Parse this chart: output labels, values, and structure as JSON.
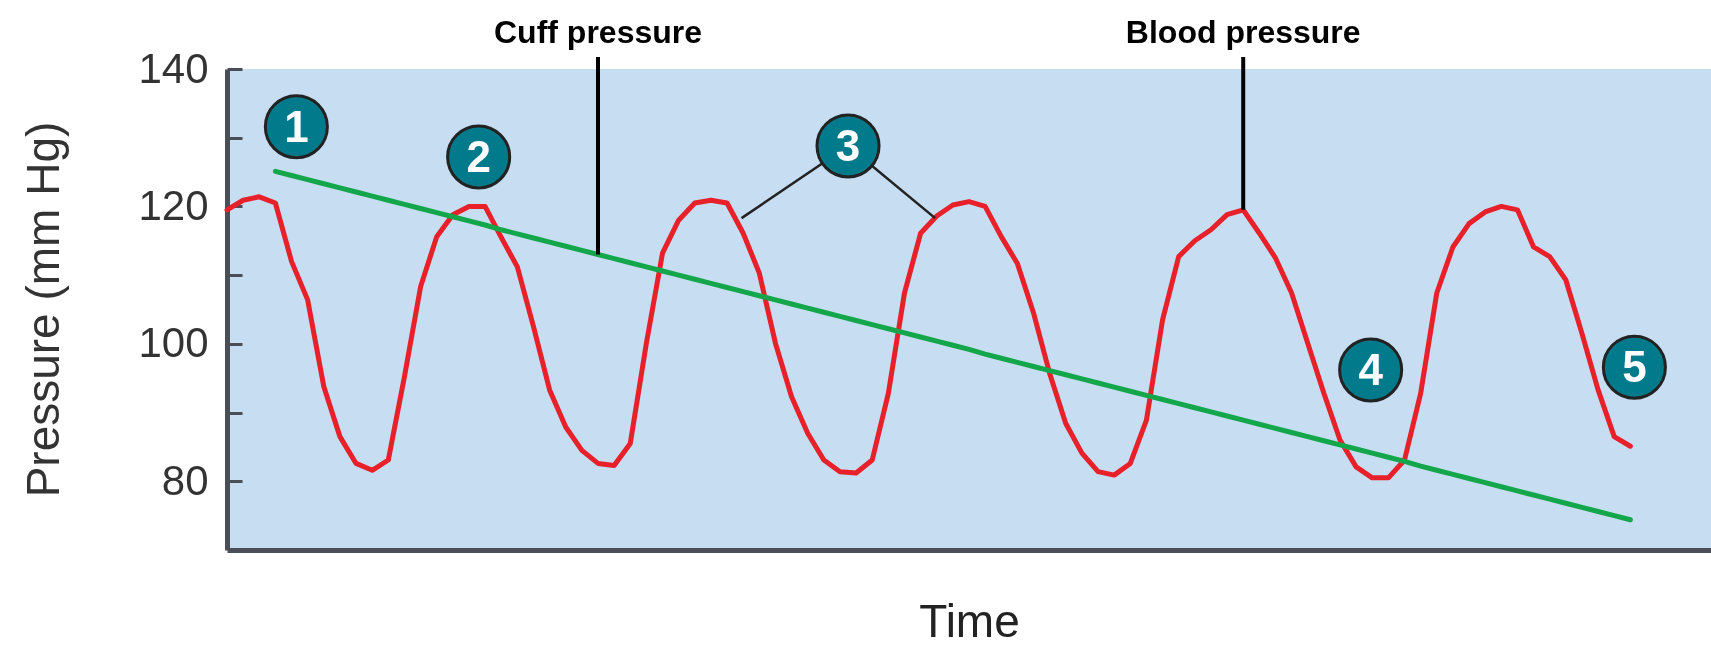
{
  "chart_data": {
    "type": "line",
    "xlabel": "Time",
    "ylabel": "Pressure (mm Hg)",
    "categories": [
      null,
      null,
      null,
      null,
      null,
      null,
      null,
      null,
      null,
      null,
      null,
      null,
      null,
      null,
      null,
      null,
      null,
      null,
      null,
      null,
      null,
      null,
      null,
      null,
      null,
      null,
      null,
      null,
      null,
      null,
      null,
      null,
      null,
      null,
      null,
      null,
      null,
      null,
      null,
      null,
      null,
      null,
      null,
      null,
      null,
      null,
      null,
      null,
      null,
      null,
      null,
      null,
      null,
      null,
      null,
      null,
      null,
      null,
      null,
      null,
      null,
      null,
      null,
      null,
      null,
      null,
      null,
      null,
      null,
      null,
      null,
      null,
      null,
      null,
      null,
      null,
      null,
      null,
      null,
      null,
      null,
      null,
      null,
      null,
      null,
      null,
      null,
      null,
      null,
      null,
      null,
      null,
      null
    ],
    "series": [
      {
        "name": "Cuff pressure",
        "color": "#13a64a",
        "values": [
          null,
          null,
          null,
          125.1,
          124.5,
          123.9,
          123.3,
          122.7,
          122.1,
          121.5,
          120.9,
          120.3,
          119.7,
          119.1,
          118.5,
          117.9,
          117.3,
          116.6,
          116.0,
          115.4,
          114.8,
          114.2,
          113.6,
          113.0,
          112.4,
          111.8,
          111.2,
          110.6,
          110.0,
          109.4,
          108.8,
          108.2,
          107.6,
          107.0,
          106.4,
          105.8,
          105.2,
          104.6,
          104.0,
          103.4,
          102.8,
          102.2,
          101.6,
          101.0,
          100.4,
          99.8,
          99.2,
          98.5,
          97.9,
          97.3,
          96.7,
          96.1,
          95.5,
          94.9,
          94.3,
          93.7,
          93.1,
          92.5,
          91.9,
          91.3,
          90.7,
          90.1,
          89.5,
          88.9,
          88.3,
          87.7,
          87.1,
          86.5,
          85.9,
          85.3,
          84.7,
          84.1,
          83.5,
          82.9,
          82.2,
          81.6,
          81.0,
          80.4,
          79.8,
          79.2,
          78.6,
          78.0,
          77.4,
          76.8,
          76.2,
          75.6,
          75.0,
          74.4,
          null,
          null,
          null,
          null,
          null
        ]
      },
      {
        "name": "Blood pressure",
        "color": "#e8202a",
        "values": [
          119.5,
          120.9,
          121.4,
          120.5,
          112.0,
          106.4,
          93.8,
          86.5,
          82.6,
          81.6,
          83.1,
          95.2,
          108.3,
          115.6,
          118.8,
          120.0,
          120.0,
          115.5,
          111.2,
          102.5,
          93.3,
          87.9,
          84.5,
          82.6,
          82.3,
          85.5,
          100.1,
          113.2,
          118.0,
          120.5,
          120.9,
          120.5,
          116.1,
          110.3,
          100.1,
          92.3,
          87.0,
          83.1,
          81.4,
          81.2,
          83.1,
          92.8,
          107.4,
          116.1,
          118.6,
          120.2,
          120.7,
          120.0,
          115.6,
          111.7,
          104.5,
          95.7,
          88.4,
          84.1,
          81.4,
          80.9,
          82.6,
          88.9,
          103.5,
          112.7,
          115.0,
          116.6,
          118.8,
          119.5,
          116.1,
          112.5,
          107.4,
          100.1,
          92.8,
          86.0,
          82.1,
          80.5,
          80.5,
          83.1,
          92.8,
          107.4,
          114.1,
          117.5,
          119.2,
          120.0,
          119.5,
          114.1,
          112.7,
          109.3,
          101.5,
          93.3,
          86.5,
          85.1,
          null,
          null,
          null,
          null,
          null
        ]
      }
    ],
    "ylim": [
      70,
      140
    ],
    "yticks": [
      80,
      {
        "value": 90,
        "label": null
      },
      100,
      {
        "value": 110,
        "label": null
      },
      120,
      {
        "value": 130,
        "label": null
      },
      140
    ],
    "tick_labels": "y",
    "grid": false,
    "annotations": [
      "1",
      "2",
      "3",
      "4",
      "5"
    ]
  }
}
